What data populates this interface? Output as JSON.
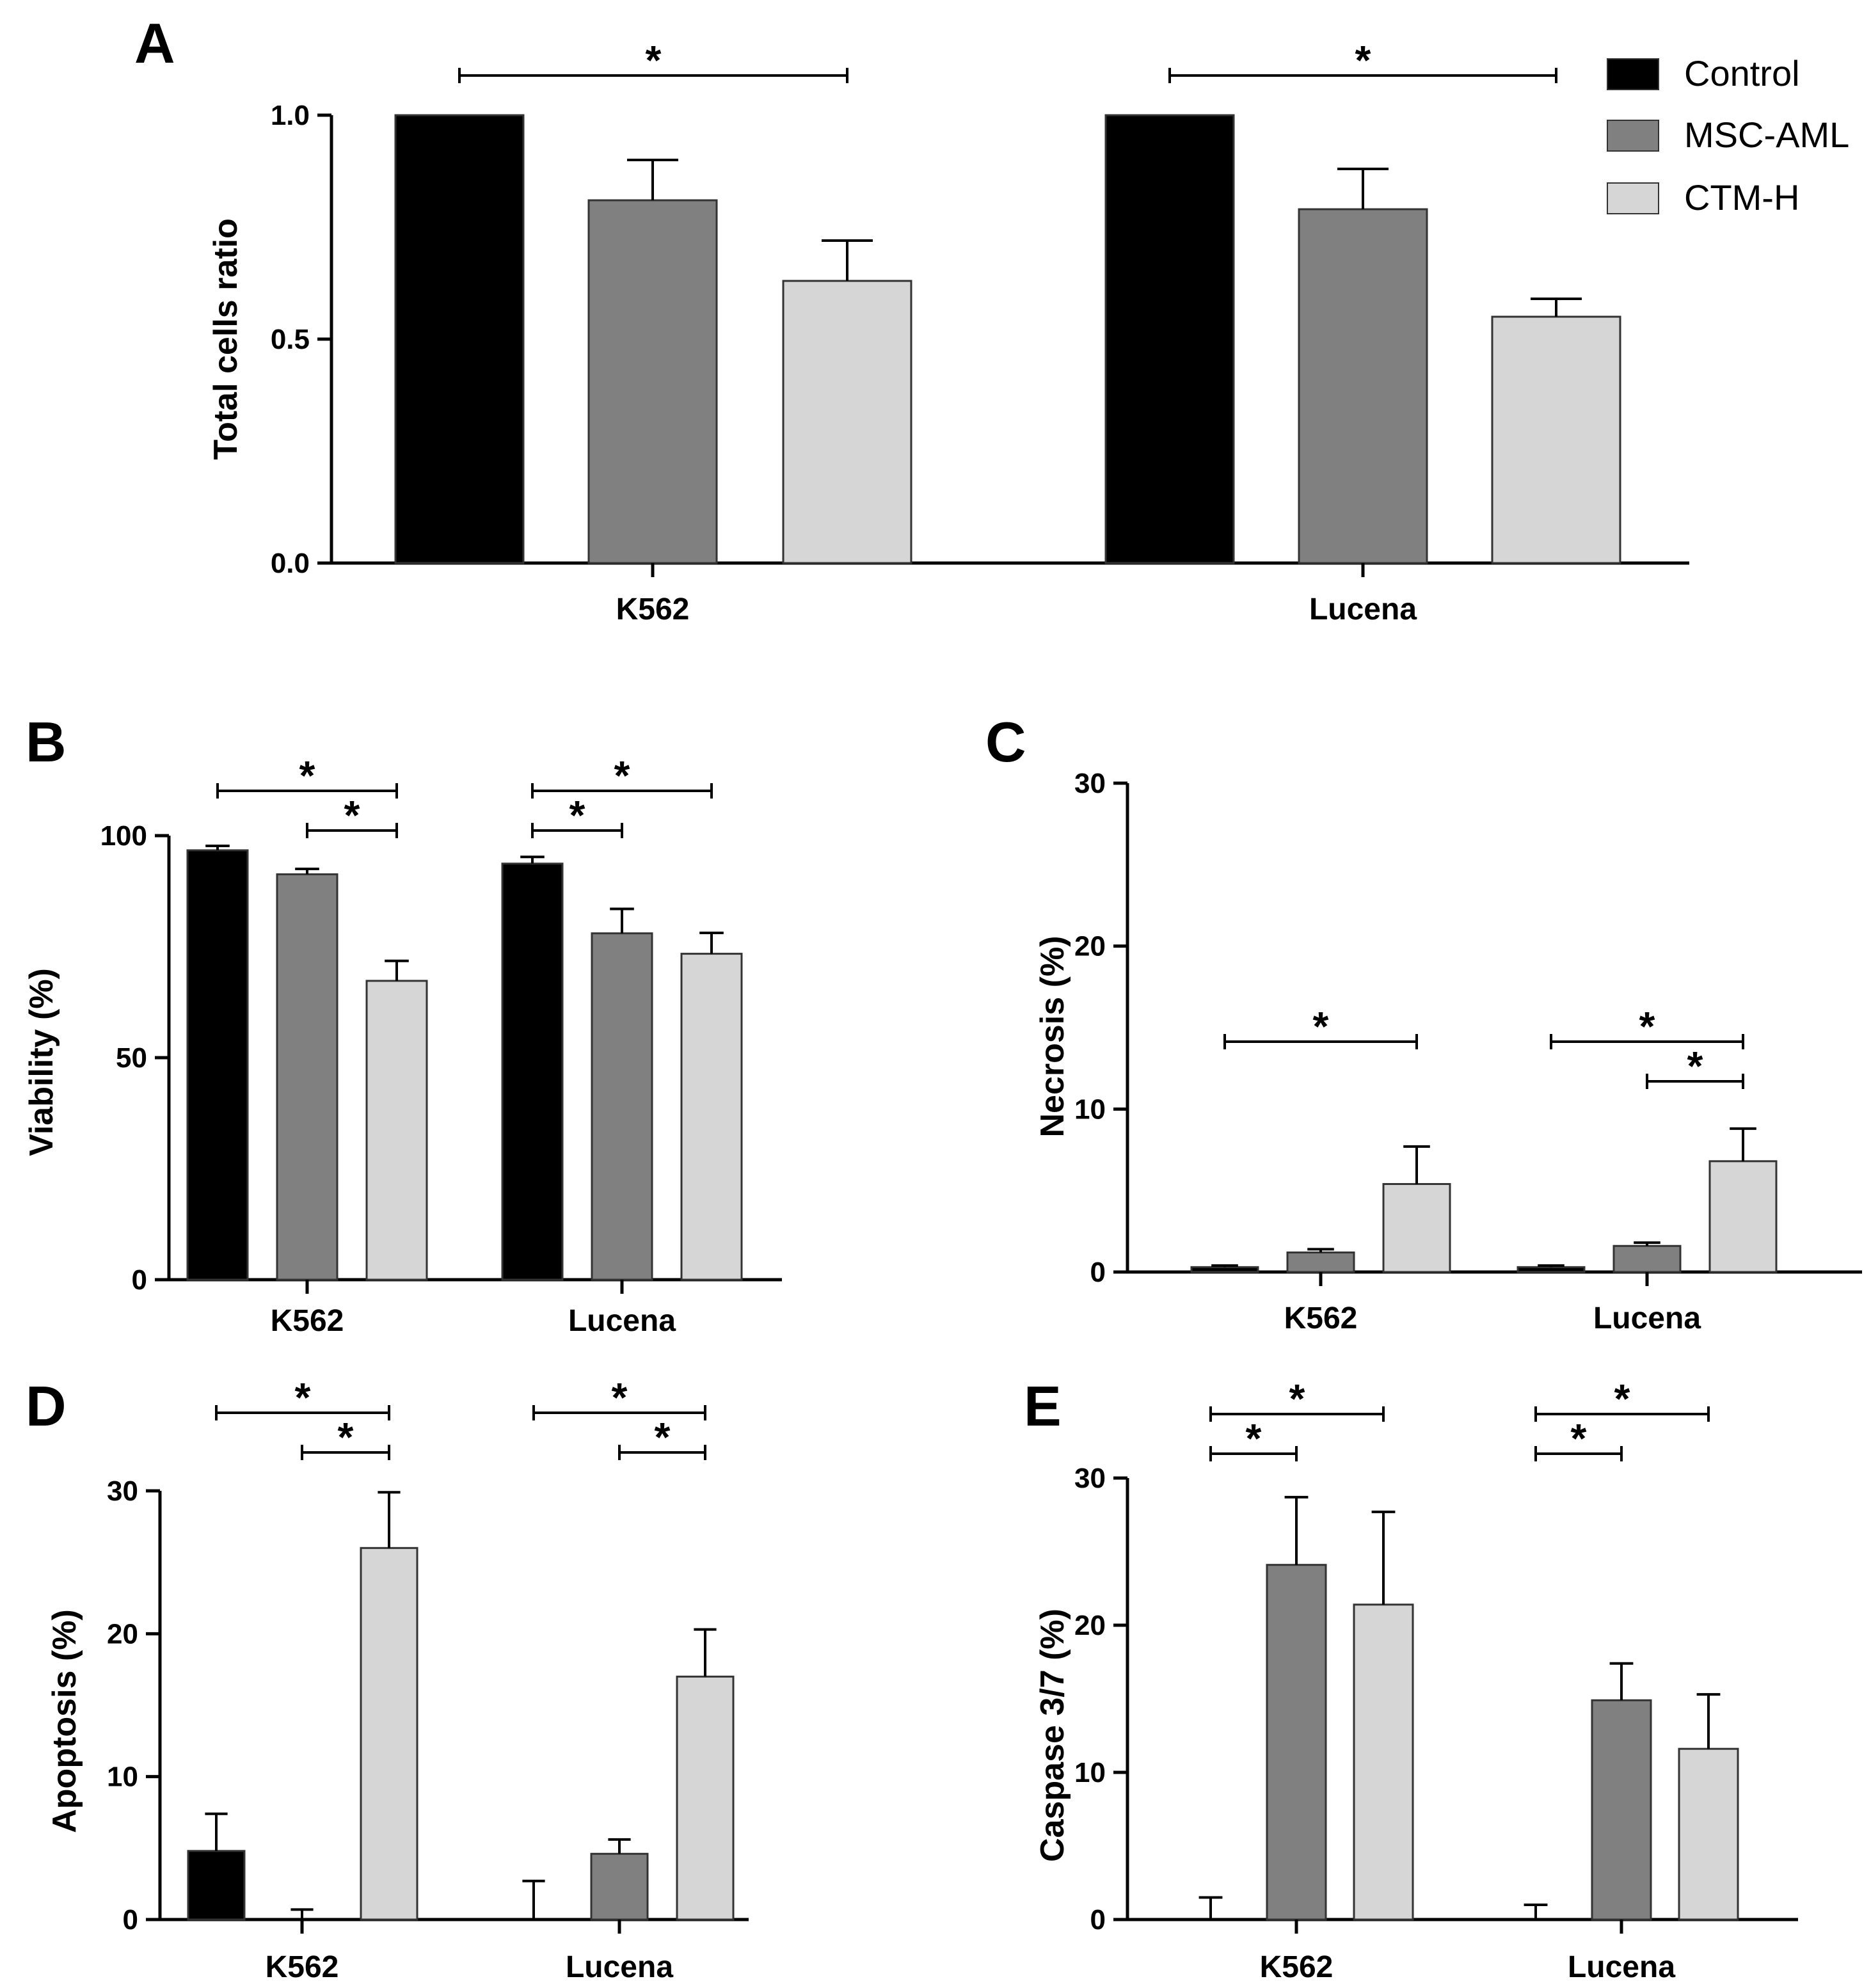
{
  "colors": {
    "Control": "#000000",
    "MSC-AML": "#808080",
    "CTM-H": "#d6d6d6",
    "axis": "#000000",
    "bar_stroke": "#333333"
  },
  "legend": {
    "items": [
      "Control",
      "MSC-AML",
      "CTM-H"
    ],
    "placement": "top-right"
  },
  "chart_data": [
    {
      "panel": "A",
      "type": "bar",
      "title": "",
      "xlabel": "",
      "ylabel": "Total cells ratio",
      "ylim": [
        0,
        1.0
      ],
      "yticks": [
        0,
        0.5,
        1.0
      ],
      "ytick_labels": [
        "0.0",
        "0.5",
        "1.0"
      ],
      "categories": [
        "K562",
        "Lucena"
      ],
      "series": [
        {
          "name": "Control",
          "values": [
            1.0,
            1.0
          ],
          "errors": [
            0,
            0
          ]
        },
        {
          "name": "MSC-AML",
          "values": [
            0.81,
            0.79
          ],
          "errors": [
            0.09,
            0.09
          ]
        },
        {
          "name": "CTM-H",
          "values": [
            0.63,
            0.55
          ],
          "errors": [
            0.09,
            0.04
          ]
        }
      ],
      "significance": [
        {
          "category": "K562",
          "from": "Control",
          "to": "CTM-H",
          "label": "*"
        },
        {
          "category": "Lucena",
          "from": "Control",
          "to": "CTM-H",
          "label": "*"
        }
      ]
    },
    {
      "panel": "B",
      "type": "bar",
      "title": "",
      "xlabel": "",
      "ylabel": "Viability (%)",
      "ylim": [
        0,
        100
      ],
      "yticks": [
        0,
        50,
        100
      ],
      "ytick_labels": [
        "0",
        "50",
        "100"
      ],
      "categories": [
        "K562",
        "Lucena"
      ],
      "series": [
        {
          "name": "Control",
          "values": [
            96.7,
            93.7
          ],
          "errors": [
            1.0,
            1.5
          ]
        },
        {
          "name": "MSC-AML",
          "values": [
            91.3,
            78.0
          ],
          "errors": [
            1.2,
            5.5
          ]
        },
        {
          "name": "CTM-H",
          "values": [
            67.3,
            73.4
          ],
          "errors": [
            4.5,
            4.7
          ]
        }
      ],
      "significance": [
        {
          "category": "K562",
          "from": "Control",
          "to": "CTM-H",
          "label": "*"
        },
        {
          "category": "K562",
          "from": "MSC-AML",
          "to": "CTM-H",
          "label": "*"
        },
        {
          "category": "Lucena",
          "from": "Control",
          "to": "CTM-H",
          "label": "*"
        },
        {
          "category": "Lucena",
          "from": "Control",
          "to": "MSC-AML",
          "label": "*"
        }
      ]
    },
    {
      "panel": "C",
      "type": "bar",
      "title": "",
      "xlabel": "",
      "ylabel": "Necrosis (%)",
      "ylim": [
        0,
        30
      ],
      "yticks": [
        0,
        10,
        20,
        30
      ],
      "ytick_labels": [
        "0",
        "10",
        "20",
        "30"
      ],
      "categories": [
        "K562",
        "Lucena"
      ],
      "series": [
        {
          "name": "Control",
          "values": [
            0.3,
            0.3
          ],
          "errors": [
            0.1,
            0.1
          ]
        },
        {
          "name": "MSC-AML",
          "values": [
            1.2,
            1.6
          ],
          "errors": [
            0.2,
            0.2
          ]
        },
        {
          "name": "CTM-H",
          "values": [
            5.4,
            6.8
          ],
          "errors": [
            2.3,
            2.0
          ]
        }
      ],
      "significance": [
        {
          "category": "K562",
          "from": "Control",
          "to": "CTM-H",
          "label": "*"
        },
        {
          "category": "Lucena",
          "from": "Control",
          "to": "CTM-H",
          "label": "*"
        },
        {
          "category": "Lucena",
          "from": "MSC-AML",
          "to": "CTM-H",
          "label": "*"
        }
      ]
    },
    {
      "panel": "D",
      "type": "bar",
      "title": "",
      "xlabel": "",
      "ylabel": "Apoptosis (%)",
      "ylim": [
        0,
        30
      ],
      "yticks": [
        0,
        10,
        20,
        30
      ],
      "ytick_labels": [
        "0",
        "10",
        "20",
        "30"
      ],
      "categories": [
        "K562",
        "Lucena"
      ],
      "series": [
        {
          "name": "Control",
          "values": [
            4.8,
            0
          ],
          "errors": [
            2.6,
            2.7
          ]
        },
        {
          "name": "MSC-AML",
          "values": [
            0,
            4.6
          ],
          "errors": [
            0.7,
            1.0
          ]
        },
        {
          "name": "CTM-H",
          "values": [
            26.0,
            17.0
          ],
          "errors": [
            3.9,
            3.3
          ]
        }
      ],
      "significance": [
        {
          "category": "K562",
          "from": "Control",
          "to": "CTM-H",
          "label": "*"
        },
        {
          "category": "K562",
          "from": "MSC-AML",
          "to": "CTM-H",
          "label": "*"
        },
        {
          "category": "Lucena",
          "from": "Control",
          "to": "CTM-H",
          "label": "*"
        },
        {
          "category": "Lucena",
          "from": "MSC-AML",
          "to": "CTM-H",
          "label": "*"
        }
      ]
    },
    {
      "panel": "E",
      "type": "bar",
      "title": "",
      "xlabel": "",
      "ylabel": "Caspase 3/7 (%)",
      "ylim": [
        0,
        30
      ],
      "yticks": [
        0,
        10,
        20,
        30
      ],
      "ytick_labels": [
        "0",
        "10",
        "20",
        "30"
      ],
      "categories": [
        "K562",
        "Lucena"
      ],
      "series": [
        {
          "name": "Control",
          "values": [
            0,
            0
          ],
          "errors": [
            1.5,
            1.0
          ]
        },
        {
          "name": "MSC-AML",
          "values": [
            24.1,
            14.9
          ],
          "errors": [
            4.6,
            2.5
          ]
        },
        {
          "name": "CTM-H",
          "values": [
            21.4,
            11.6
          ],
          "errors": [
            6.3,
            3.7
          ]
        }
      ],
      "significance": [
        {
          "category": "K562",
          "from": "Control",
          "to": "CTM-H",
          "label": "*"
        },
        {
          "category": "K562",
          "from": "Control",
          "to": "MSC-AML",
          "label": "*"
        },
        {
          "category": "Lucena",
          "from": "Control",
          "to": "CTM-H",
          "label": "*"
        },
        {
          "category": "Lucena",
          "from": "Control",
          "to": "MSC-AML",
          "label": "*"
        }
      ]
    }
  ]
}
